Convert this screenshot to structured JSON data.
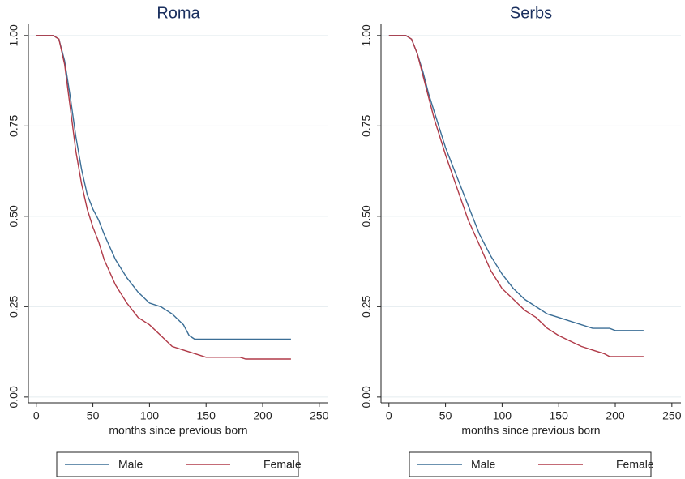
{
  "chart_data": [
    {
      "type": "line",
      "title": "Roma",
      "xlabel": "months since previous born",
      "xlim": [
        -7,
        258
      ],
      "ylim": [
        -0.016,
        1.031
      ],
      "xticks": [
        0,
        50,
        100,
        150,
        200,
        250
      ],
      "yticks": [
        {
          "value": 0,
          "label": "0.00"
        },
        0.25,
        {
          "value": 0.5,
          "label": "0.50"
        },
        0.75,
        {
          "value": 1,
          "label": "1.00"
        }
      ],
      "grid": true,
      "legend": "bottom",
      "series": [
        {
          "name": "Male",
          "color": "#3b6e96",
          "x": [
            0,
            15,
            20,
            25,
            30,
            35,
            40,
            45,
            50,
            55,
            60,
            70,
            80,
            90,
            100,
            110,
            120,
            130,
            135,
            140,
            150,
            200,
            225
          ],
          "values": [
            1,
            1,
            0.99,
            0.93,
            0.83,
            0.72,
            0.63,
            0.56,
            0.52,
            0.49,
            0.45,
            0.38,
            0.33,
            0.29,
            0.26,
            0.25,
            0.23,
            0.2,
            0.17,
            0.16,
            0.16,
            0.16,
            0.16
          ]
        },
        {
          "name": "Female",
          "color": "#b03a48",
          "x": [
            0,
            15,
            20,
            25,
            30,
            35,
            40,
            45,
            50,
            55,
            60,
            70,
            80,
            90,
            100,
            110,
            120,
            130,
            140,
            150,
            180,
            185,
            225
          ],
          "values": [
            1,
            1,
            0.99,
            0.92,
            0.8,
            0.68,
            0.59,
            0.52,
            0.47,
            0.43,
            0.38,
            0.31,
            0.26,
            0.22,
            0.2,
            0.17,
            0.14,
            0.13,
            0.12,
            0.11,
            0.11,
            0.105,
            0.105
          ]
        }
      ]
    },
    {
      "type": "line",
      "title": "Serbs",
      "xlabel": "months since previous born",
      "xlim": [
        -7,
        258
      ],
      "ylim": [
        -0.016,
        1.031
      ],
      "xticks": [
        0,
        50,
        100,
        150,
        200,
        250
      ],
      "yticks": [
        {
          "value": 0,
          "label": "0.00"
        },
        0.25,
        {
          "value": 0.5,
          "label": "0.50"
        },
        0.75,
        {
          "value": 1,
          "label": "1.00"
        }
      ],
      "grid": true,
      "legend": "bottom",
      "series": [
        {
          "name": "Male",
          "color": "#3b6e96",
          "x": [
            0,
            15,
            20,
            25,
            30,
            35,
            40,
            45,
            50,
            60,
            70,
            80,
            90,
            100,
            110,
            120,
            130,
            140,
            150,
            160,
            180,
            195,
            200,
            225
          ],
          "values": [
            1,
            1,
            0.99,
            0.95,
            0.9,
            0.84,
            0.79,
            0.74,
            0.69,
            0.61,
            0.53,
            0.45,
            0.39,
            0.34,
            0.3,
            0.27,
            0.25,
            0.23,
            0.22,
            0.21,
            0.19,
            0.19,
            0.184,
            0.184
          ]
        },
        {
          "name": "Female",
          "color": "#b03a48",
          "x": [
            0,
            15,
            20,
            25,
            30,
            35,
            40,
            45,
            50,
            60,
            70,
            80,
            90,
            100,
            110,
            120,
            130,
            140,
            150,
            160,
            170,
            180,
            190,
            195,
            225
          ],
          "values": [
            1,
            1,
            0.99,
            0.95,
            0.89,
            0.83,
            0.77,
            0.72,
            0.67,
            0.58,
            0.49,
            0.42,
            0.35,
            0.3,
            0.27,
            0.24,
            0.22,
            0.19,
            0.17,
            0.155,
            0.14,
            0.13,
            0.12,
            0.112,
            0.112
          ]
        }
      ]
    }
  ]
}
